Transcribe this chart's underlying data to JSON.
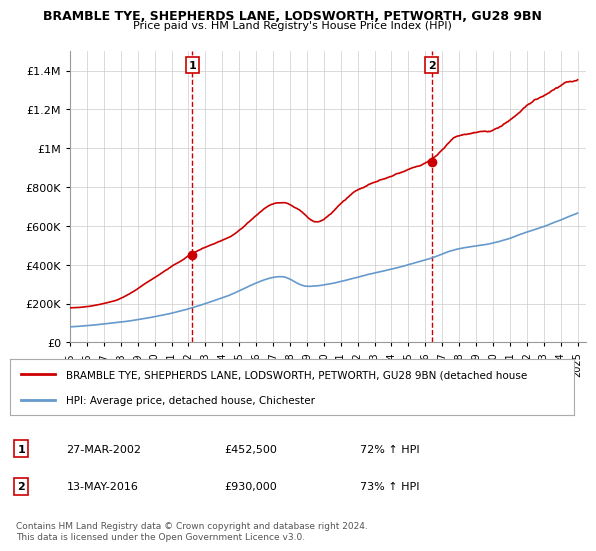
{
  "title": "BRAMBLE TYE, SHEPHERDS LANE, LODSWORTH, PETWORTH, GU28 9BN",
  "subtitle": "Price paid vs. HM Land Registry's House Price Index (HPI)",
  "xlim": [
    1995.0,
    2025.5
  ],
  "ylim": [
    0,
    1500000
  ],
  "yticks": [
    0,
    200000,
    400000,
    600000,
    800000,
    1000000,
    1200000,
    1400000
  ],
  "ytick_labels": [
    "£0",
    "£200K",
    "£400K",
    "£600K",
    "£800K",
    "£1M",
    "£1.2M",
    "£1.4M"
  ],
  "xticks": [
    1995,
    1996,
    1997,
    1998,
    1999,
    2000,
    2001,
    2002,
    2003,
    2004,
    2005,
    2006,
    2007,
    2008,
    2009,
    2010,
    2011,
    2012,
    2013,
    2014,
    2015,
    2016,
    2017,
    2018,
    2019,
    2020,
    2021,
    2022,
    2023,
    2024,
    2025
  ],
  "sale1_x": 2002.23,
  "sale1_y": 452500,
  "sale1_label": "1",
  "sale2_x": 2016.37,
  "sale2_y": 930000,
  "sale2_label": "2",
  "vline1_x": 2002.23,
  "vline2_x": 2016.37,
  "red_line_color": "#cc0000",
  "blue_line_color": "#6699cc",
  "marker_color": "#cc0000",
  "vline_color": "#cc0000",
  "grid_color": "#cccccc",
  "background_color": "#ffffff",
  "legend_line1": "BRAMBLE TYE, SHEPHERDS LANE, LODSWORTH, PETWORTH, GU28 9BN (detached house",
  "legend_line2": "HPI: Average price, detached house, Chichester",
  "table_row1": [
    "1",
    "27-MAR-2002",
    "£452,500",
    "72% ↑ HPI"
  ],
  "table_row2": [
    "2",
    "13-MAY-2016",
    "£930,000",
    "73% ↑ HPI"
  ],
  "footer": "Contains HM Land Registry data © Crown copyright and database right 2024.\nThis data is licensed under the Open Government Licence v3.0."
}
